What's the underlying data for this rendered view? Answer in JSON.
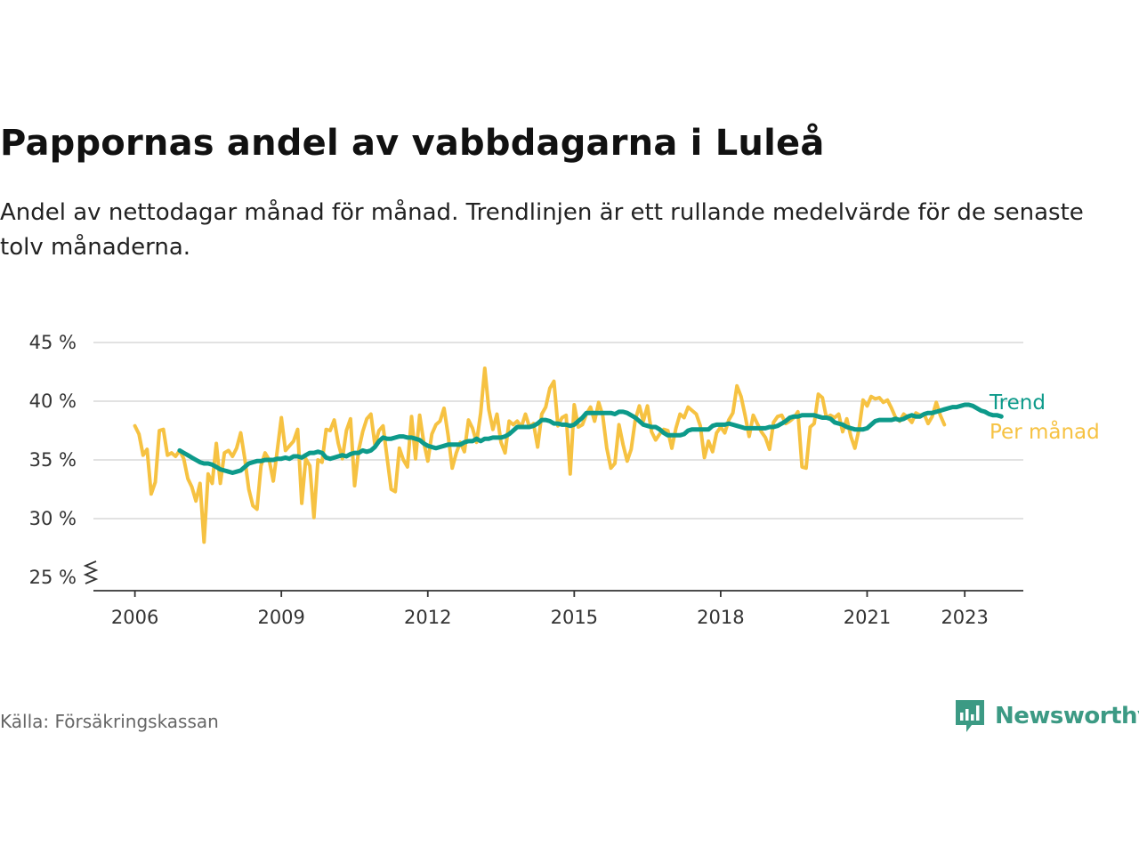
{
  "title": "Pappornas andel av vabbdagarna i Luleå",
  "subtitle": "Andel av nettodagar månad för månad. Trendlinjen är ett rullande medelvärde för de senaste tolv månaderna.",
  "source": "Källa: Försäkringskassan",
  "brand": {
    "name": "Newsworthy",
    "color": "#3c9a84"
  },
  "colors": {
    "monthly": "#f6c242",
    "trend": "#0d9a8a",
    "grid": "#d9d9d9",
    "axis": "#333333"
  },
  "chart_data": {
    "type": "line",
    "title": "Pappornas andel av vabbdagarna i Luleå",
    "xlabel": "",
    "ylabel": "",
    "ylim": [
      25,
      45
    ],
    "xlim": [
      2005.15,
      2024.2
    ],
    "y_ticks": [
      25,
      30,
      35,
      40,
      45
    ],
    "y_tick_labels": [
      "25 %",
      "30 %",
      "35 %",
      "40 %",
      "45 %"
    ],
    "x_ticks": [
      2006,
      2009,
      2012,
      2015,
      2018,
      2021,
      2023
    ],
    "x_tick_labels": [
      "2006",
      "2009",
      "2012",
      "2015",
      "2018",
      "2021",
      "2023"
    ],
    "axis_break": true,
    "grid": true,
    "legend": "right-end labels",
    "series": [
      {
        "name": "Trend",
        "color": "#0d9a8a",
        "start": 2006.9167,
        "step": 0.0833333,
        "values": [
          35.8,
          35.6,
          35.4,
          35.2,
          35.0,
          34.8,
          34.7,
          34.7,
          34.6,
          34.4,
          34.2,
          34.1,
          34.0,
          33.9,
          34.0,
          34.1,
          34.4,
          34.7,
          34.8,
          34.9,
          34.9,
          35.0,
          35.0,
          35.0,
          35.1,
          35.1,
          35.2,
          35.1,
          35.3,
          35.3,
          35.2,
          35.4,
          35.6,
          35.6,
          35.7,
          35.6,
          35.2,
          35.1,
          35.2,
          35.3,
          35.4,
          35.3,
          35.5,
          35.6,
          35.6,
          35.8,
          35.7,
          35.8,
          36.1,
          36.6,
          36.9,
          36.8,
          36.8,
          36.9,
          37.0,
          37.0,
          36.9,
          36.9,
          36.8,
          36.7,
          36.4,
          36.2,
          36.1,
          36.0,
          36.1,
          36.2,
          36.3,
          36.3,
          36.3,
          36.3,
          36.5,
          36.6,
          36.6,
          36.8,
          36.6,
          36.8,
          36.8,
          36.9,
          36.9,
          36.9,
          37.0,
          37.2,
          37.5,
          37.8,
          37.8,
          37.8,
          37.8,
          37.9,
          38.1,
          38.4,
          38.4,
          38.3,
          38.1,
          38.1,
          38.0,
          38.0,
          37.9,
          38.0,
          38.3,
          38.6,
          39.0,
          39.0,
          39.0,
          39.0,
          39.0,
          39.0,
          39.0,
          38.9,
          39.1,
          39.1,
          39.0,
          38.8,
          38.6,
          38.3,
          38.0,
          37.9,
          37.8,
          37.8,
          37.6,
          37.3,
          37.1,
          37.1,
          37.1,
          37.1,
          37.2,
          37.5,
          37.6,
          37.6,
          37.6,
          37.6,
          37.6,
          37.9,
          38.0,
          38.0,
          38.0,
          38.1,
          38.0,
          37.9,
          37.8,
          37.7,
          37.7,
          37.7,
          37.7,
          37.7,
          37.7,
          37.8,
          37.8,
          37.9,
          38.1,
          38.3,
          38.6,
          38.7,
          38.7,
          38.8,
          38.8,
          38.8,
          38.8,
          38.7,
          38.6,
          38.6,
          38.5,
          38.2,
          38.1,
          38.0,
          37.8,
          37.7,
          37.6,
          37.6,
          37.6,
          37.7,
          38.0,
          38.3,
          38.4,
          38.4,
          38.4,
          38.4,
          38.5,
          38.4,
          38.5,
          38.7,
          38.8,
          38.7,
          38.7,
          38.9,
          39.0,
          39.0,
          39.1,
          39.2,
          39.3,
          39.4,
          39.5,
          39.5,
          39.6,
          39.7,
          39.7,
          39.6,
          39.4,
          39.2,
          39.1,
          38.9,
          38.8,
          38.8,
          38.7
        ]
      },
      {
        "name": "Per månad",
        "color": "#f6c242",
        "start": 2006.0,
        "step": 0.0833333,
        "values": [
          37.9,
          37.2,
          35.4,
          35.9,
          32.1,
          33.1,
          37.5,
          37.6,
          35.4,
          35.6,
          35.3,
          35.8,
          35.1,
          33.4,
          32.7,
          31.5,
          33.0,
          28.0,
          33.8,
          33.0,
          36.4,
          33.0,
          35.6,
          35.8,
          35.3,
          36.0,
          37.3,
          35.1,
          32.5,
          31.1,
          30.8,
          34.5,
          35.6,
          35.0,
          33.2,
          35.8,
          38.6,
          35.8,
          36.2,
          36.6,
          37.6,
          31.3,
          35.1,
          34.5,
          30.1,
          35.0,
          34.8,
          37.6,
          37.5,
          38.4,
          36.4,
          35.1,
          37.5,
          38.5,
          32.8,
          35.8,
          37.4,
          38.5,
          38.9,
          36.3,
          37.5,
          37.9,
          35.2,
          32.5,
          32.3,
          36.0,
          35.0,
          34.4,
          38.7,
          35.1,
          38.8,
          36.5,
          34.9,
          37.2,
          38.0,
          38.3,
          39.4,
          37.1,
          34.3,
          35.6,
          36.5,
          35.7,
          38.4,
          37.7,
          36.5,
          39.0,
          42.8,
          39.3,
          37.6,
          38.9,
          36.5,
          35.6,
          38.3,
          38.0,
          38.3,
          37.8,
          38.9,
          37.8,
          38.1,
          36.1,
          38.9,
          39.5,
          41.1,
          41.7,
          37.9,
          38.6,
          38.8,
          33.8,
          39.7,
          37.8,
          38.0,
          38.9,
          39.5,
          38.3,
          39.9,
          38.8,
          36.0,
          34.3,
          34.7,
          38.0,
          36.3,
          34.9,
          35.9,
          38.4,
          39.6,
          38.3,
          39.6,
          37.4,
          36.7,
          37.2,
          37.6,
          37.5,
          36.0,
          37.7,
          38.9,
          38.6,
          39.5,
          39.2,
          38.9,
          37.9,
          35.2,
          36.6,
          35.7,
          37.3,
          37.8,
          37.3,
          38.4,
          39.0,
          41.3,
          40.4,
          38.8,
          37.0,
          38.8,
          38.1,
          37.4,
          36.9,
          35.9,
          38.2,
          38.7,
          38.8,
          38.1,
          38.3,
          38.6,
          39.1,
          34.4,
          34.3,
          37.8,
          38.1,
          40.6,
          40.3,
          38.6,
          38.8,
          38.6,
          38.9,
          37.4,
          38.5,
          37.0,
          36.0,
          37.6,
          40.1,
          39.6,
          40.4,
          40.2,
          40.3,
          39.9,
          40.1,
          39.4,
          38.6,
          38.3,
          38.9,
          38.6,
          38.2,
          39.0,
          38.8,
          38.9,
          38.1,
          38.7,
          39.9,
          38.8,
          38.0
        ]
      }
    ]
  }
}
